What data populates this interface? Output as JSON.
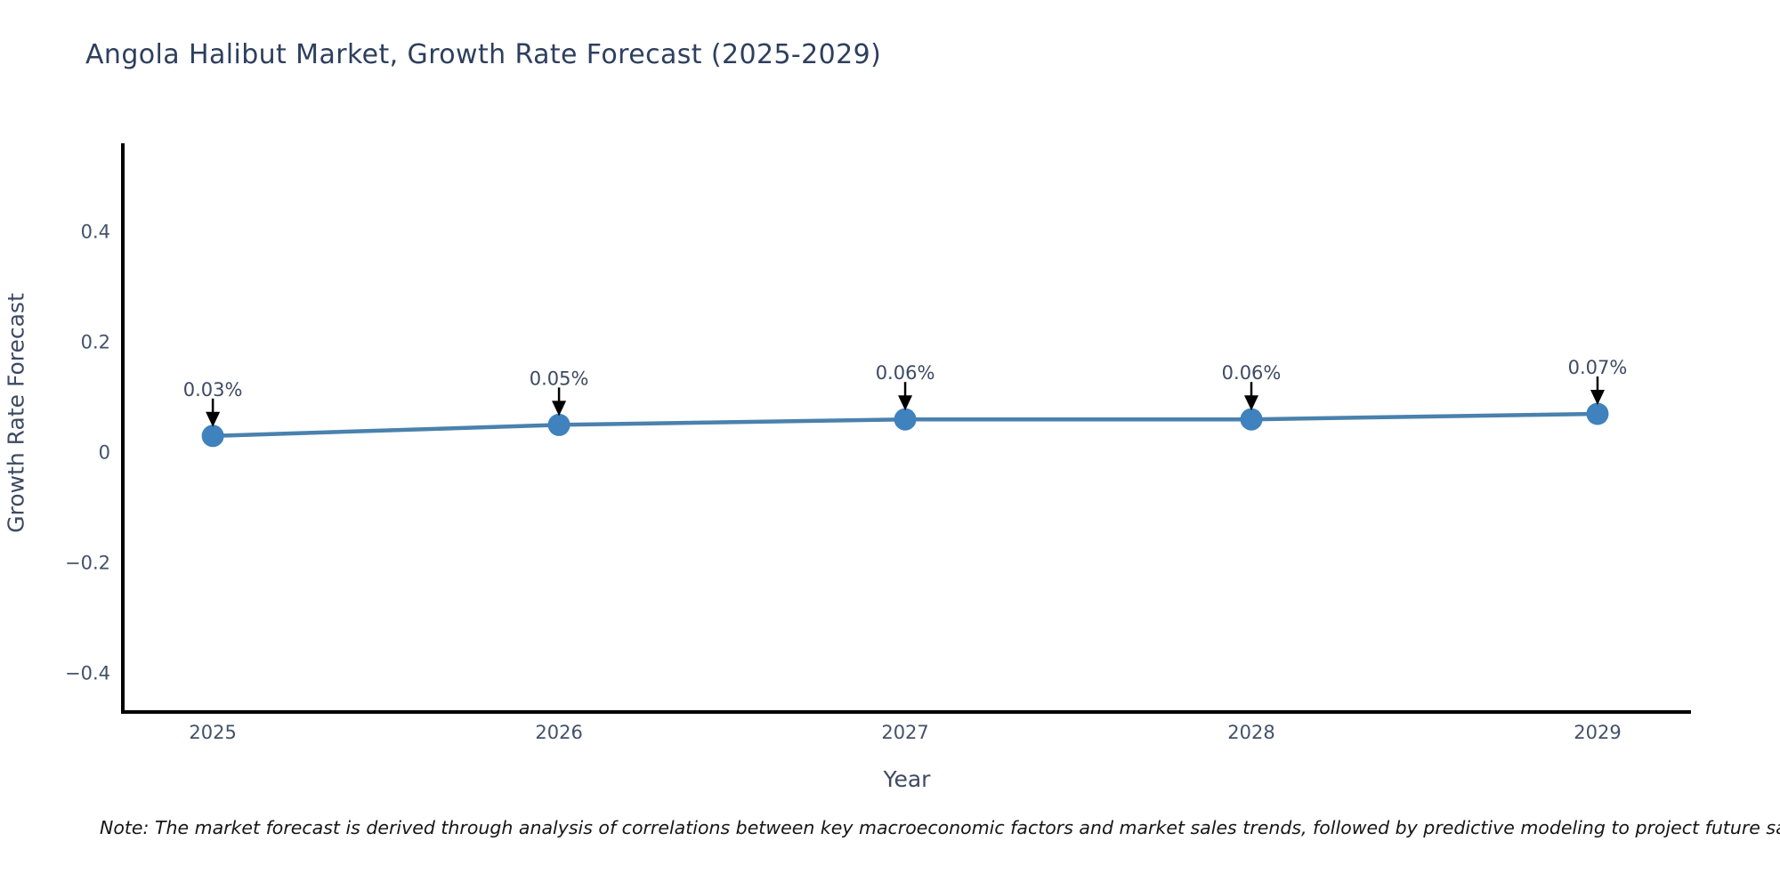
{
  "page": {
    "background": "#ffffff"
  },
  "note": {
    "text": "Note: The market forecast is derived through analysis of correlations between key macroeconomic factors and market sales trends, followed by predictive modeling to project future sales."
  },
  "chart_data": {
    "type": "line",
    "title": "Angola Halibut Market, Growth Rate Forecast (2025-2029)",
    "xlabel": "Year",
    "ylabel": "Growth Rate Forecast",
    "x": [
      2025,
      2026,
      2027,
      2028,
      2029
    ],
    "xtick_labels": [
      "2025",
      "2026",
      "2027",
      "2028",
      "2029"
    ],
    "series": [
      {
        "name": "Growth Rate Forecast",
        "values": [
          0.03,
          0.05,
          0.06,
          0.06,
          0.07
        ]
      }
    ],
    "point_labels": [
      "0.03%",
      "0.05%",
      "0.06%",
      "0.06%",
      "0.07%"
    ],
    "yticks": [
      0.4,
      0.2,
      0,
      -0.2,
      -0.4
    ],
    "ytick_labels": [
      "0.4",
      "0.2",
      "0",
      "−0.2",
      "−0.4"
    ],
    "xlim": [
      2024.74,
      2029.27
    ],
    "ylim": [
      -0.47,
      0.56
    ],
    "grid": false,
    "legend": "none",
    "annotation_style": "black-down-arrow-to-each-point",
    "colors": {
      "line": "#4a81ad",
      "marker": "#3f82bd",
      "axis": "#000000",
      "arrow": "#000000",
      "title_text": "#2e3f5e",
      "tick_text": "#42526b",
      "label_text": "#3d4a63",
      "note_text": "#161616"
    }
  }
}
